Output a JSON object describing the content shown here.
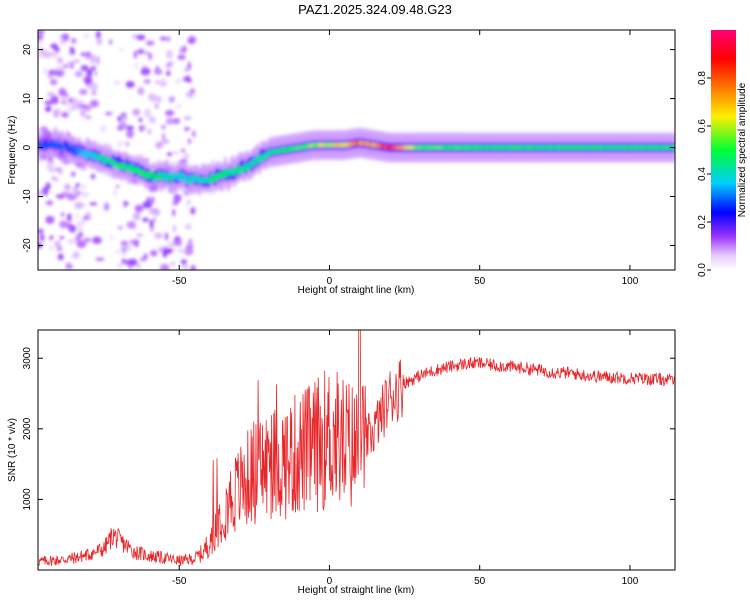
{
  "title": "PAZ1.2025.324.09.48.G23",
  "colors": {
    "snr_line": "#e8262a",
    "axis": "#000000",
    "spectral_ridge_low": "#6a00ff",
    "spectral_ridge_mid": "#00ccff",
    "spectral_ridge_high": "#ff0000"
  },
  "chart_data": [
    {
      "type": "heatmap",
      "title": "PAZ1.2025.324.09.48.G23",
      "xlabel": "Height of straight line (km)",
      "ylabel": "Frequency (Hz)",
      "xlim": [
        -97,
        115
      ],
      "ylim": [
        -25,
        24
      ],
      "x_ticks": [
        -50,
        0,
        50,
        100
      ],
      "y_ticks": [
        -20,
        -10,
        0,
        10,
        20
      ],
      "colorbar": {
        "label": "Normalized spectral amplitude",
        "range": [
          0.0,
          1.0
        ],
        "ticks": [
          0.0,
          0.2,
          0.4,
          0.6,
          0.8
        ],
        "colormap": "rainbow (white→violet→blue→cyan→green→yellow→orange→red→magenta)"
      },
      "ridge": {
        "x": [
          -90,
          -85,
          -80,
          -75,
          -70,
          -65,
          -60,
          -55,
          -50,
          -45,
          -40,
          -35,
          -30,
          -25,
          -20,
          -15,
          -10,
          -5,
          0,
          5,
          10,
          15,
          20,
          25,
          30,
          40,
          50,
          60,
          80,
          100,
          115
        ],
        "frequency": [
          0.5,
          -0.5,
          -1.5,
          -2.5,
          -3.5,
          -4.5,
          -5.5,
          -6,
          -6,
          -6.5,
          -6.5,
          -5.5,
          -4.5,
          -3,
          -1,
          -0.5,
          0,
          0.5,
          0.5,
          0.5,
          1,
          0.5,
          0,
          0,
          0,
          0,
          0,
          0,
          0,
          0,
          0
        ],
        "peak_amplitude": [
          0.3,
          0.3,
          0.4,
          0.45,
          0.45,
          0.5,
          0.5,
          0.45,
          0.4,
          0.4,
          0.45,
          0.5,
          0.45,
          0.45,
          0.45,
          0.5,
          0.55,
          0.6,
          0.65,
          0.7,
          0.8,
          0.75,
          0.95,
          0.7,
          0.55,
          0.55,
          0.5,
          0.5,
          0.5,
          0.5,
          0.5
        ]
      }
    },
    {
      "type": "line",
      "xlabel": "Height of straight line (km)",
      "ylabel": "SNR (10 * v/v)",
      "xlim": [
        -97,
        115
      ],
      "ylim": [
        0,
        3400
      ],
      "x_ticks": [
        -50,
        0,
        50,
        100
      ],
      "y_ticks": [
        1000,
        2000,
        3000
      ],
      "series": [
        {
          "name": "SNR",
          "x": [
            -97,
            -90,
            -85,
            -80,
            -75,
            -72,
            -70,
            -65,
            -60,
            -55,
            -50,
            -45,
            -42,
            -40,
            -35,
            -30,
            -25,
            -20,
            -15,
            -10,
            -5,
            0,
            5,
            10,
            15,
            20,
            25,
            30,
            35,
            40,
            45,
            50,
            55,
            60,
            65,
            70,
            75,
            80,
            85,
            90,
            95,
            100,
            105,
            110,
            115
          ],
          "values": [
            120,
            140,
            170,
            220,
            300,
            500,
            420,
            260,
            200,
            170,
            130,
            160,
            250,
            400,
            900,
            1150,
            1400,
            1500,
            1550,
            1650,
            1750,
            1900,
            1800,
            1700,
            2000,
            2450,
            2650,
            2750,
            2830,
            2880,
            2920,
            2930,
            2900,
            2880,
            2860,
            2830,
            2800,
            2790,
            2760,
            2740,
            2730,
            2720,
            2710,
            2700,
            2690
          ]
        }
      ]
    }
  ]
}
